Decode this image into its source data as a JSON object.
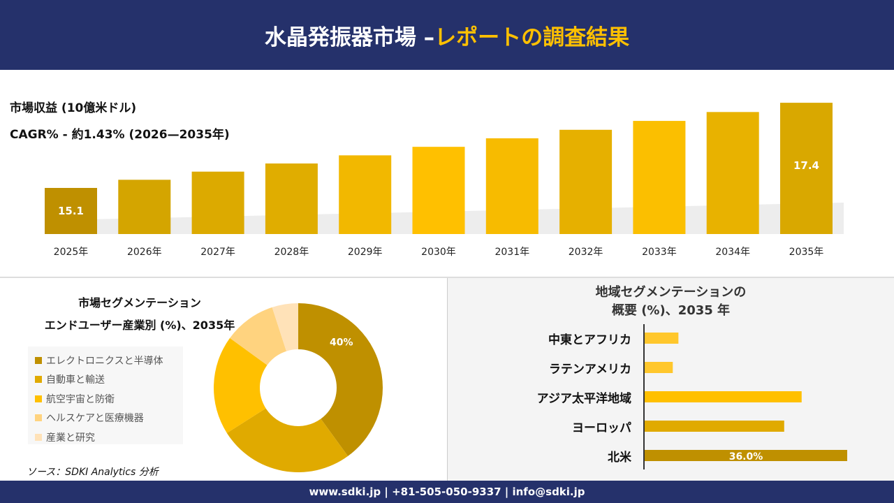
{
  "header": {
    "title_main": "水晶発振器市場 –",
    "title_accent": "レポートの調査結果"
  },
  "metrics": {
    "revenue_label": "市場収益 (10億米ドル)",
    "cagr_label": "CAGR% - 約1.43% (2026—2035年)"
  },
  "chart_data": [
    {
      "type": "bar",
      "categories": [
        "2025年",
        "2026年",
        "2027年",
        "2028年",
        "2029年",
        "2030年",
        "2031年",
        "2032年",
        "2033年",
        "2034年",
        "2035年"
      ],
      "values": [
        15.1,
        15.32,
        15.54,
        15.76,
        15.98,
        16.21,
        16.44,
        16.67,
        16.91,
        17.15,
        17.4
      ],
      "data_labels": {
        "0": "15.1",
        "10": "17.4"
      },
      "colors": [
        "#bf9000",
        "#d4a500",
        "#dcaa00",
        "#e0ad00",
        "#f2b800",
        "#ffc000",
        "#f7bb00",
        "#e6b000",
        "#fbbf00",
        "#e8b200",
        "#d9a800"
      ]
    },
    {
      "type": "pie",
      "title": "市場セグメンテーション",
      "subtitle": "エンドユーザー産業別 (%)、2035年",
      "categories": [
        "エレクトロニクスと半導体",
        "自動車と輸送",
        "航空宇宙と防衛",
        "ヘルスケアと医療機器",
        "産業と研究"
      ],
      "values": [
        40,
        26,
        19,
        10,
        5
      ],
      "data_labels": {
        "0": "40%"
      },
      "colors": [
        "#bf9000",
        "#e0aa00",
        "#ffc000",
        "#ffd37f",
        "#ffe2b8"
      ],
      "legend": "left"
    },
    {
      "type": "bar",
      "orientation": "horizontal",
      "title_line1": "地域セグメンテーションの",
      "title_line2": "概要 (%)、2035 年",
      "categories": [
        "中東とアフリカ",
        "ラテンアメリカ",
        "アジア太平洋地域",
        "ヨーロッパ",
        "北米"
      ],
      "values": [
        6,
        5,
        27.9,
        24.8,
        36.0
      ],
      "data_labels": {
        "4": "36.0%"
      },
      "colors": [
        "#ffc72c",
        "#ffc72c",
        "#ffc000",
        "#e0aa00",
        "#bf9000"
      ]
    }
  ],
  "source": "ソース：SDKI Analytics 分析",
  "footer": "www.sdki.jp | +81-505-050-9337 | info@sdki.jp"
}
